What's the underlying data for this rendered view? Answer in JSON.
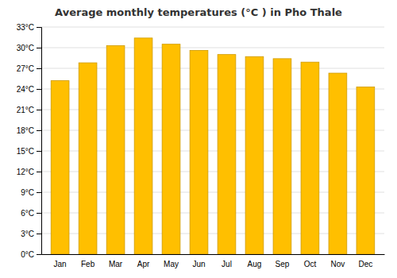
{
  "chart_data": {
    "type": "bar",
    "title": "Average monthly temperatures (°C ) in Pho Thale",
    "categories": [
      "Jan",
      "Feb",
      "Mar",
      "Apr",
      "May",
      "Jun",
      "Jul",
      "Aug",
      "Sep",
      "Oct",
      "Nov",
      "Dec"
    ],
    "values": [
      25.2,
      27.8,
      30.3,
      31.4,
      30.5,
      29.6,
      29.0,
      28.7,
      28.4,
      27.9,
      26.3,
      24.3
    ],
    "color": "#FFBF00",
    "ylim": [
      0,
      33
    ],
    "yticks": [
      {
        "value": 0,
        "label": "0°C"
      },
      {
        "value": 3,
        "label": "3°C"
      },
      {
        "value": 6,
        "label": "6°C"
      },
      {
        "value": 9,
        "label": "9°C"
      },
      {
        "value": 12,
        "label": "12°C"
      },
      {
        "value": 15,
        "label": "15°C"
      },
      {
        "value": 18,
        "label": "18°C"
      },
      {
        "value": 21,
        "label": "21°C"
      },
      {
        "value": 24,
        "label": "24°C"
      },
      {
        "value": 27,
        "label": "27°C"
      },
      {
        "value": 30,
        "label": "30°C"
      },
      {
        "value": 33,
        "label": "33°C"
      }
    ],
    "grid": true
  }
}
